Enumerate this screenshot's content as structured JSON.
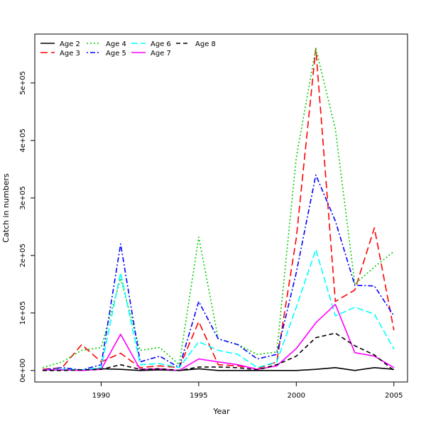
{
  "chart_data": {
    "type": "line",
    "title": "",
    "xlabel": "Year",
    "ylabel": "Catch in numbers",
    "xlim": [
      1986.6,
      2005.7
    ],
    "ylim": [
      -20000,
      585000
    ],
    "x_ticks": [
      1990,
      1995,
      2000,
      2005
    ],
    "x_tick_labels": [
      "1990",
      "1995",
      "2000",
      "2005"
    ],
    "y_ticks": [
      0,
      100000,
      200000,
      300000,
      400000,
      500000
    ],
    "y_tick_labels": [
      "0e+00",
      "1e+05",
      "2e+05",
      "3e+05",
      "4e+05",
      "5e+05"
    ],
    "grid": false,
    "legend_position": "top-left",
    "x": [
      1987,
      1988,
      1989,
      1990,
      1991,
      1992,
      1993,
      1994,
      1995,
      1996,
      1997,
      1998,
      1999,
      2000,
      2001,
      2002,
      2003,
      2004,
      2005
    ],
    "series": [
      {
        "name": "Age 2",
        "color": "#000000",
        "dash": "solid",
        "values": [
          1000,
          1000,
          1000,
          3000,
          2000,
          0,
          1000,
          0,
          3000,
          0,
          0,
          0,
          0,
          0,
          2000,
          5000,
          0,
          5000,
          2000
        ]
      },
      {
        "name": "Age 3",
        "color": "#ff0000",
        "dash": "long",
        "values": [
          2000,
          5000,
          45000,
          15000,
          30000,
          5000,
          8000,
          5000,
          85000,
          10000,
          8000,
          3000,
          15000,
          230000,
          560000,
          120000,
          140000,
          248000,
          70000
        ]
      },
      {
        "name": "Age 4",
        "color": "#00cd00",
        "dash": "dotted",
        "values": [
          5000,
          15000,
          35000,
          40000,
          160000,
          35000,
          40000,
          10000,
          232000,
          55000,
          45000,
          28000,
          32000,
          370000,
          560000,
          420000,
          150000,
          180000,
          207000
        ]
      },
      {
        "name": "Age 5",
        "color": "#0000ff",
        "dash": "dotdash",
        "values": [
          1000,
          5000,
          1000,
          10000,
          220000,
          15000,
          25000,
          5000,
          120000,
          55000,
          45000,
          20000,
          28000,
          170000,
          340000,
          260000,
          148000,
          147000,
          95000
        ]
      },
      {
        "name": "Age 6",
        "color": "#00ffff",
        "dash": "longdash",
        "values": [
          1000,
          2000,
          1000,
          5000,
          170000,
          10000,
          12000,
          5000,
          50000,
          35000,
          28000,
          5000,
          15000,
          110000,
          210000,
          95000,
          110000,
          98000,
          37000
        ]
      },
      {
        "name": "Age 7",
        "color": "#ff00ff",
        "dash": "solid",
        "values": [
          1000,
          1000,
          0,
          2000,
          63000,
          2000,
          3000,
          0,
          20000,
          15000,
          10000,
          2000,
          8000,
          38000,
          83000,
          115000,
          31000,
          25000,
          5000
        ]
      },
      {
        "name": "Age 8",
        "color": "#000000",
        "dash": "dashed",
        "values": [
          0,
          0,
          1000,
          2000,
          10000,
          2000,
          3000,
          0,
          6000,
          6000,
          5000,
          1000,
          10000,
          25000,
          57000,
          65000,
          43000,
          27000,
          0
        ]
      }
    ]
  }
}
